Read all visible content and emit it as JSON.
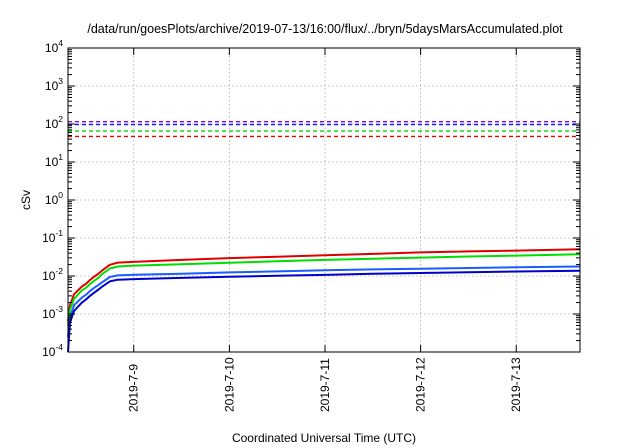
{
  "chart_data": {
    "type": "line",
    "title": "/data/run/goesPlots/archive/2019-07-13/16:00/flux/../bryn/5daysMarsAccumulated.plot",
    "xlabel": "Coordinated Universal Time (UTC)",
    "ylabel": "cSv",
    "x_scale": "time",
    "y_scale": "log",
    "xlim": [
      "2019-07-08T07:30",
      "2019-07-13T16:00"
    ],
    "ylim": [
      0.0001,
      10000
    ],
    "grid": true,
    "legend": "none",
    "x_ticks": [
      "2019-7-9",
      "2019-7-10",
      "2019-7-11",
      "2019-7-12",
      "2019-7-13"
    ],
    "y_ticks": [
      {
        "value": 0.0001,
        "base": "10",
        "exp": "-4"
      },
      {
        "value": 0.001,
        "base": "10",
        "exp": "-3"
      },
      {
        "value": 0.01,
        "base": "10",
        "exp": "-2"
      },
      {
        "value": 0.1,
        "base": "10",
        "exp": "-1"
      },
      {
        "value": 1,
        "base": "10",
        "exp": "0"
      },
      {
        "value": 10,
        "base": "10",
        "exp": "1"
      },
      {
        "value": 100,
        "base": "10",
        "exp": "2"
      },
      {
        "value": 1000,
        "base": "10",
        "exp": "3"
      },
      {
        "value": 10000,
        "base": "10",
        "exp": "4"
      }
    ],
    "reference_lines": [
      {
        "color": "#9400d3",
        "value": 115
      },
      {
        "color": "#1a1aff",
        "value": 97
      },
      {
        "color": "#00dd00",
        "value": 65
      },
      {
        "color": "#ee0000",
        "value": 47
      }
    ],
    "series": [
      {
        "color": "#dd0000",
        "points": [
          [
            "2019-07-08T07:30",
            0.00065
          ],
          [
            "2019-07-08T08:00",
            0.0017
          ],
          [
            "2019-07-08T09:00",
            0.0033
          ],
          [
            "2019-07-08T11:00",
            0.0053
          ],
          [
            "2019-07-08T12:00",
            0.0062
          ],
          [
            "2019-07-08T13:00",
            0.0078
          ],
          [
            "2019-07-08T14:00",
            0.0095
          ],
          [
            "2019-07-08T15:00",
            0.0112
          ],
          [
            "2019-07-08T16:00",
            0.0138
          ],
          [
            "2019-07-08T18:00",
            0.0197
          ],
          [
            "2019-07-08T20:00",
            0.0225
          ],
          [
            "2019-07-09T00:00",
            0.0235
          ],
          [
            "2019-07-09T12:00",
            0.0265
          ],
          [
            "2019-07-10T00:00",
            0.0296
          ],
          [
            "2019-07-10T12:00",
            0.0323
          ],
          [
            "2019-07-11T00:00",
            0.0352
          ],
          [
            "2019-07-11T12:00",
            0.0382
          ],
          [
            "2019-07-12T00:00",
            0.0418
          ],
          [
            "2019-07-12T12:00",
            0.0445
          ],
          [
            "2019-07-13T00:00",
            0.0465
          ],
          [
            "2019-07-13T16:00",
            0.0505
          ]
        ]
      },
      {
        "color": "#00dd00",
        "points": [
          [
            "2019-07-08T07:30",
            0.0005
          ],
          [
            "2019-07-08T08:00",
            0.0013
          ],
          [
            "2019-07-08T09:00",
            0.0025
          ],
          [
            "2019-07-08T11:00",
            0.0042
          ],
          [
            "2019-07-08T12:00",
            0.0049
          ],
          [
            "2019-07-08T13:00",
            0.0061
          ],
          [
            "2019-07-08T14:00",
            0.0074
          ],
          [
            "2019-07-08T15:00",
            0.0088
          ],
          [
            "2019-07-08T16:00",
            0.0111
          ],
          [
            "2019-07-08T18:00",
            0.0158
          ],
          [
            "2019-07-08T20:00",
            0.0178
          ],
          [
            "2019-07-09T00:00",
            0.0188
          ],
          [
            "2019-07-09T12:00",
            0.0205
          ],
          [
            "2019-07-10T00:00",
            0.0223
          ],
          [
            "2019-07-10T12:00",
            0.0243
          ],
          [
            "2019-07-11T00:00",
            0.0265
          ],
          [
            "2019-07-11T12:00",
            0.0285
          ],
          [
            "2019-07-12T00:00",
            0.0305
          ],
          [
            "2019-07-12T12:00",
            0.0325
          ],
          [
            "2019-07-13T00:00",
            0.0345
          ],
          [
            "2019-07-13T16:00",
            0.0375
          ]
        ]
      },
      {
        "color": "#1a5cff",
        "points": [
          [
            "2019-07-08T07:30",
            0.00025
          ],
          [
            "2019-07-08T08:00",
            0.0008
          ],
          [
            "2019-07-08T09:00",
            0.0017
          ],
          [
            "2019-07-08T11:00",
            0.0027
          ],
          [
            "2019-07-08T12:00",
            0.0032
          ],
          [
            "2019-07-08T13:00",
            0.004
          ],
          [
            "2019-07-08T14:00",
            0.0048
          ],
          [
            "2019-07-08T15:00",
            0.0057
          ],
          [
            "2019-07-08T16:00",
            0.0068
          ],
          [
            "2019-07-08T18:00",
            0.0094
          ],
          [
            "2019-07-08T20:00",
            0.0104
          ],
          [
            "2019-07-09T00:00",
            0.0108
          ],
          [
            "2019-07-09T12:00",
            0.0115
          ],
          [
            "2019-07-10T00:00",
            0.0124
          ],
          [
            "2019-07-10T12:00",
            0.0132
          ],
          [
            "2019-07-11T00:00",
            0.0141
          ],
          [
            "2019-07-11T12:00",
            0.0149
          ],
          [
            "2019-07-12T00:00",
            0.0156
          ],
          [
            "2019-07-12T12:00",
            0.0162
          ],
          [
            "2019-07-13T00:00",
            0.0169
          ],
          [
            "2019-07-13T16:00",
            0.0178
          ]
        ]
      },
      {
        "color": "#0000cc",
        "points": [
          [
            "2019-07-08T07:30",
            0.0001
          ],
          [
            "2019-07-08T08:00",
            0.0006
          ],
          [
            "2019-07-08T09:00",
            0.0012
          ],
          [
            "2019-07-08T11:00",
            0.002
          ],
          [
            "2019-07-08T12:00",
            0.0024
          ],
          [
            "2019-07-08T13:00",
            0.003
          ],
          [
            "2019-07-08T14:00",
            0.0036
          ],
          [
            "2019-07-08T15:00",
            0.0043
          ],
          [
            "2019-07-08T16:00",
            0.0052
          ],
          [
            "2019-07-08T18:00",
            0.0072
          ],
          [
            "2019-07-08T20:00",
            0.008
          ],
          [
            "2019-07-09T00:00",
            0.0083
          ],
          [
            "2019-07-09T12:00",
            0.0089
          ],
          [
            "2019-07-10T00:00",
            0.0095
          ],
          [
            "2019-07-10T12:00",
            0.0101
          ],
          [
            "2019-07-11T00:00",
            0.0107
          ],
          [
            "2019-07-11T12:00",
            0.0114
          ],
          [
            "2019-07-12T00:00",
            0.012
          ],
          [
            "2019-07-12T12:00",
            0.0126
          ],
          [
            "2019-07-13T00:00",
            0.0131
          ],
          [
            "2019-07-13T16:00",
            0.0138
          ]
        ]
      }
    ]
  }
}
